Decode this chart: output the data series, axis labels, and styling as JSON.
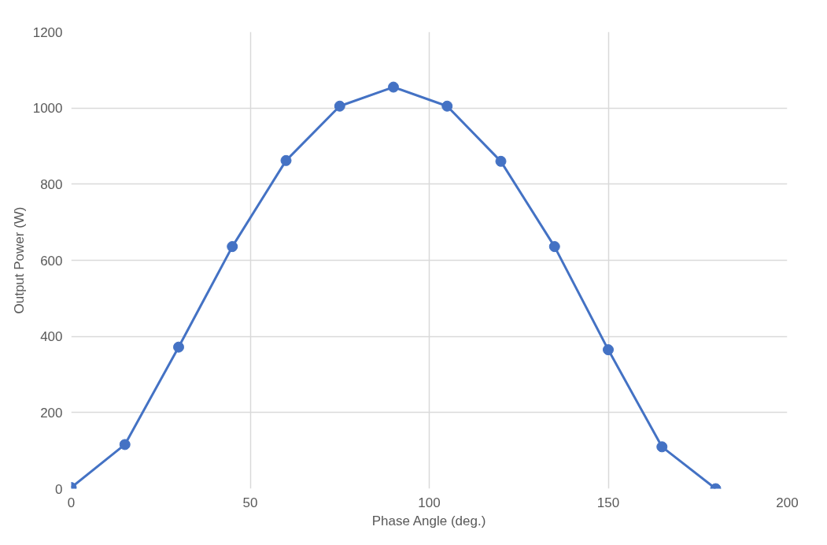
{
  "chart_data": {
    "type": "line",
    "xlabel": "Phase Angle (deg.)",
    "ylabel": "Output Power (W)",
    "x": [
      0,
      15,
      30,
      45,
      60,
      75,
      90,
      105,
      120,
      135,
      150,
      165,
      180
    ],
    "series": [
      {
        "color": "#4472c4",
        "values": [
          3,
          116,
          372,
          636,
          862,
          1005,
          1055,
          1005,
          860,
          636,
          365,
          110,
          0
        ]
      }
    ],
    "xlim": [
      0,
      200
    ],
    "xticks": [
      0,
      50,
      100,
      150,
      200
    ],
    "ylim": [
      0,
      1200
    ],
    "yticks": [
      0,
      200,
      400,
      600,
      800,
      1000,
      1200
    ],
    "grid": true,
    "marker": "circle",
    "line_style": "solid"
  }
}
